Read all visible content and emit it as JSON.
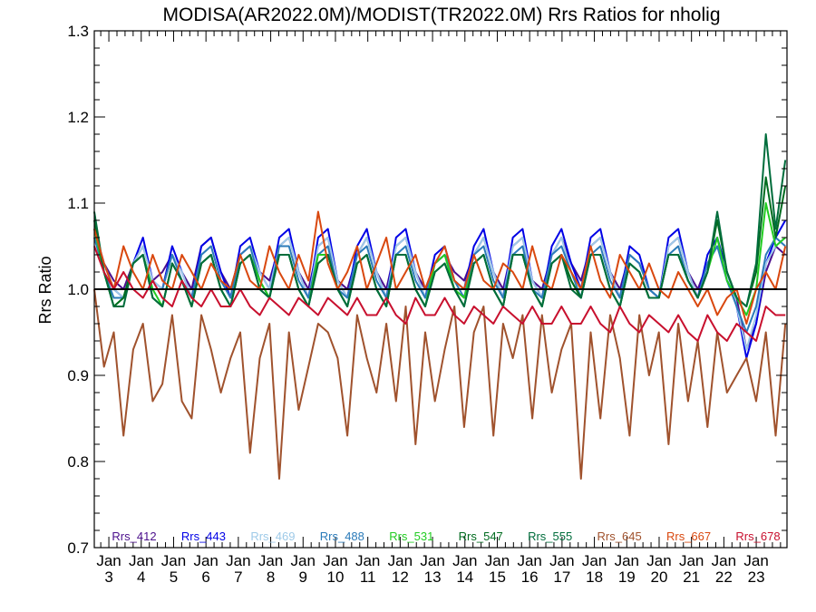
{
  "chart_data": {
    "type": "line",
    "title": "MODISA(AR2022.0M)/MODIST(TR2022.0M)  Rrs Ratios for nholig",
    "ylabel": "Rrs Ratio",
    "xlabel": "",
    "ylim": [
      0.7,
      1.3
    ],
    "yticks": [
      "0.7",
      "0.8",
      "0.9",
      "1.0",
      "1.1",
      "1.2",
      "1.3"
    ],
    "xlim": [
      2002.55,
      2023.95
    ],
    "xticks": [
      {
        "value": 2003,
        "label": "Jan",
        "sub": "3"
      },
      {
        "value": 2004,
        "label": "Jan",
        "sub": "4"
      },
      {
        "value": 2005,
        "label": "Jan",
        "sub": "5"
      },
      {
        "value": 2006,
        "label": "Jan",
        "sub": "6"
      },
      {
        "value": 2007,
        "label": "Jan",
        "sub": "7"
      },
      {
        "value": 2008,
        "label": "Jan",
        "sub": "8"
      },
      {
        "value": 2009,
        "label": "Jan",
        "sub": "9"
      },
      {
        "value": 2010,
        "label": "Jan",
        "sub": "10"
      },
      {
        "value": 2011,
        "label": "Jan",
        "sub": "11"
      },
      {
        "value": 2012,
        "label": "Jan",
        "sub": "12"
      },
      {
        "value": 2013,
        "label": "Jan",
        "sub": "13"
      },
      {
        "value": 2014,
        "label": "Jan",
        "sub": "14"
      },
      {
        "value": 2015,
        "label": "Jan",
        "sub": "15"
      },
      {
        "value": 2016,
        "label": "Jan",
        "sub": "16"
      },
      {
        "value": 2017,
        "label": "Jan",
        "sub": "17"
      },
      {
        "value": 2018,
        "label": "Jan",
        "sub": "18"
      },
      {
        "value": 2019,
        "label": "Jan",
        "sub": "19"
      },
      {
        "value": 2020,
        "label": "Jan",
        "sub": "20"
      },
      {
        "value": 2021,
        "label": "Jan",
        "sub": "21"
      },
      {
        "value": 2022,
        "label": "Jan",
        "sub": "22"
      },
      {
        "value": 2023,
        "label": "Jan",
        "sub": "23"
      }
    ],
    "reference_line": 1.0,
    "grid": false,
    "legend_position": "bottom",
    "series": [
      {
        "name": "Rrs_412",
        "color": "#4b0f8c",
        "values": [
          1.06,
          1.03,
          1.01,
          1.0,
          1.03,
          1.05,
          1.01,
          1.02,
          1.04,
          1.02,
          1.0,
          1.05,
          1.06,
          1.02,
          1.0,
          1.04,
          1.05,
          1.02,
          1.01,
          1.05,
          1.06,
          1.02,
          1.0,
          1.05,
          1.06,
          1.01,
          1.0,
          1.04,
          1.06,
          1.02,
          1.0,
          1.05,
          1.06,
          1.02,
          1.0,
          1.03,
          1.04,
          1.02,
          1.01,
          1.04,
          1.06,
          1.02,
          1.0,
          1.05,
          1.06,
          1.01,
          1.0,
          1.04,
          1.06,
          1.03,
          1.01,
          1.05,
          1.06,
          1.02,
          1.0,
          1.04,
          1.03,
          1.0,
          0.99,
          1.05,
          1.06,
          1.02,
          1.0,
          1.03,
          1.05,
          1.02,
          0.99,
          0.93,
          0.96,
          1.02,
          1.05,
          1.04
        ]
      },
      {
        "name": "Rrs_443",
        "color": "#0000e6",
        "values": [
          1.07,
          1.03,
          1.0,
          0.99,
          1.03,
          1.06,
          1.01,
          1.0,
          1.05,
          1.02,
          0.99,
          1.05,
          1.06,
          1.02,
          0.99,
          1.05,
          1.06,
          1.02,
          1.0,
          1.06,
          1.07,
          1.02,
          0.99,
          1.06,
          1.07,
          1.01,
          0.99,
          1.05,
          1.07,
          1.02,
          0.99,
          1.06,
          1.07,
          1.02,
          0.99,
          1.04,
          1.05,
          1.01,
          1.0,
          1.05,
          1.07,
          1.02,
          0.99,
          1.06,
          1.07,
          1.01,
          0.99,
          1.05,
          1.07,
          1.03,
          1.0,
          1.06,
          1.07,
          1.02,
          0.99,
          1.05,
          1.04,
          1.0,
          0.99,
          1.06,
          1.07,
          1.02,
          0.99,
          1.04,
          1.06,
          1.02,
          0.98,
          0.92,
          0.96,
          1.03,
          1.06,
          1.08
        ]
      },
      {
        "name": "Rrs_469",
        "color": "#9ecae8",
        "values": [
          1.06,
          1.03,
          1.0,
          0.99,
          1.03,
          1.05,
          1.01,
          1.0,
          1.04,
          1.02,
          0.99,
          1.04,
          1.05,
          1.01,
          0.99,
          1.04,
          1.05,
          1.02,
          1.0,
          1.05,
          1.06,
          1.02,
          0.99,
          1.05,
          1.06,
          1.01,
          0.99,
          1.04,
          1.06,
          1.02,
          0.99,
          1.05,
          1.06,
          1.02,
          0.99,
          1.03,
          1.04,
          1.01,
          1.0,
          1.04,
          1.06,
          1.02,
          0.99,
          1.05,
          1.06,
          1.01,
          0.99,
          1.04,
          1.06,
          1.02,
          1.0,
          1.05,
          1.06,
          1.02,
          0.99,
          1.04,
          1.03,
          1.0,
          0.99,
          1.05,
          1.06,
          1.02,
          0.99,
          1.03,
          1.05,
          1.02,
          0.98,
          0.93,
          0.97,
          1.03,
          1.05,
          1.06
        ]
      },
      {
        "name": "Rrs_488",
        "color": "#2b7bb9",
        "values": [
          1.06,
          1.02,
          0.99,
          0.99,
          1.03,
          1.04,
          1.0,
          1.0,
          1.04,
          1.01,
          0.99,
          1.04,
          1.05,
          1.01,
          0.99,
          1.04,
          1.05,
          1.01,
          0.99,
          1.05,
          1.05,
          1.01,
          0.99,
          1.04,
          1.05,
          1.0,
          0.99,
          1.04,
          1.05,
          1.01,
          0.99,
          1.04,
          1.05,
          1.01,
          0.99,
          1.03,
          1.04,
          1.01,
          0.99,
          1.04,
          1.05,
          1.01,
          0.99,
          1.04,
          1.05,
          1.0,
          0.99,
          1.04,
          1.05,
          1.02,
          0.99,
          1.04,
          1.05,
          1.01,
          0.99,
          1.04,
          1.03,
          1.0,
          0.99,
          1.04,
          1.05,
          1.01,
          0.99,
          1.03,
          1.05,
          1.01,
          0.98,
          0.95,
          0.98,
          1.04,
          1.06,
          1.05
        ]
      },
      {
        "name": "Rrs_531",
        "color": "#22cc22",
        "values": [
          1.07,
          1.02,
          0.98,
          0.99,
          1.03,
          1.04,
          1.0,
          0.98,
          1.03,
          1.01,
          0.98,
          1.03,
          1.04,
          1.0,
          0.98,
          1.03,
          1.04,
          1.01,
          0.99,
          1.04,
          1.04,
          1.0,
          0.98,
          1.04,
          1.04,
          1.0,
          0.98,
          1.03,
          1.04,
          1.0,
          0.98,
          1.04,
          1.04,
          1.0,
          0.98,
          1.03,
          1.04,
          1.0,
          0.99,
          1.03,
          1.04,
          1.0,
          0.98,
          1.04,
          1.04,
          1.0,
          0.98,
          1.03,
          1.04,
          1.01,
          0.99,
          1.04,
          1.04,
          1.0,
          0.98,
          1.03,
          1.02,
          0.99,
          0.99,
          1.04,
          1.04,
          1.01,
          0.99,
          1.02,
          1.06,
          1.01,
          0.99,
          0.97,
          1.0,
          1.1,
          1.05,
          1.06
        ]
      },
      {
        "name": "Rrs_547",
        "color": "#006b1f",
        "values": [
          1.08,
          1.02,
          0.98,
          0.99,
          1.03,
          1.04,
          0.99,
          0.98,
          1.03,
          1.01,
          0.98,
          1.03,
          1.04,
          1.0,
          0.98,
          1.03,
          1.04,
          1.0,
          0.99,
          1.04,
          1.04,
          1.0,
          0.98,
          1.03,
          1.04,
          1.0,
          0.98,
          1.03,
          1.04,
          1.0,
          0.98,
          1.04,
          1.04,
          1.0,
          0.98,
          1.02,
          1.03,
          1.0,
          0.98,
          1.03,
          1.04,
          1.0,
          0.98,
          1.04,
          1.04,
          1.0,
          0.98,
          1.03,
          1.04,
          1.01,
          0.99,
          1.04,
          1.04,
          1.0,
          0.98,
          1.03,
          1.02,
          0.99,
          0.99,
          1.04,
          1.04,
          1.01,
          0.99,
          1.02,
          1.08,
          1.02,
          0.99,
          0.98,
          1.02,
          1.13,
          1.06,
          1.12
        ]
      },
      {
        "name": "Rrs_555",
        "color": "#006d3c",
        "values": [
          1.09,
          1.02,
          0.98,
          0.98,
          1.03,
          1.04,
          0.99,
          0.98,
          1.03,
          1.01,
          0.98,
          1.03,
          1.04,
          1.0,
          0.98,
          1.03,
          1.04,
          1.0,
          0.99,
          1.04,
          1.04,
          1.0,
          0.98,
          1.03,
          1.04,
          1.0,
          0.98,
          1.03,
          1.04,
          1.0,
          0.98,
          1.04,
          1.04,
          1.0,
          0.98,
          1.02,
          1.03,
          1.0,
          0.98,
          1.03,
          1.04,
          1.0,
          0.98,
          1.04,
          1.04,
          1.0,
          0.98,
          1.03,
          1.04,
          1.0,
          0.99,
          1.04,
          1.04,
          1.0,
          0.98,
          1.03,
          1.02,
          0.99,
          0.99,
          1.04,
          1.04,
          1.01,
          0.99,
          1.02,
          1.09,
          1.02,
          0.99,
          0.98,
          1.03,
          1.18,
          1.07,
          1.15
        ]
      },
      {
        "name": "Rrs_645",
        "color": "#a0522d",
        "values": [
          1.0,
          0.91,
          0.95,
          0.83,
          0.93,
          0.96,
          0.87,
          0.89,
          0.97,
          0.87,
          0.85,
          0.97,
          0.93,
          0.88,
          0.92,
          0.95,
          0.81,
          0.92,
          0.96,
          0.78,
          0.95,
          0.86,
          0.91,
          0.96,
          0.95,
          0.92,
          0.83,
          0.97,
          0.92,
          0.88,
          0.96,
          0.87,
          0.98,
          0.82,
          0.95,
          0.87,
          0.93,
          0.98,
          0.84,
          0.95,
          0.98,
          0.83,
          0.96,
          0.92,
          0.97,
          0.85,
          0.97,
          0.88,
          0.93,
          0.96,
          0.78,
          0.95,
          0.85,
          0.97,
          0.92,
          0.83,
          0.97,
          0.9,
          0.95,
          0.82,
          0.96,
          0.87,
          0.94,
          0.84,
          0.95,
          0.88,
          0.9,
          0.92,
          0.87,
          0.95,
          0.83,
          0.96
        ]
      },
      {
        "name": "Rrs_667",
        "color": "#d9480f",
        "values": [
          1.07,
          1.03,
          1.0,
          1.05,
          1.02,
          1.0,
          1.04,
          1.01,
          1.0,
          1.04,
          1.02,
          1.0,
          1.03,
          1.01,
          1.0,
          1.04,
          1.01,
          1.0,
          1.05,
          1.02,
          1.0,
          1.04,
          1.01,
          1.09,
          1.03,
          1.0,
          1.02,
          1.05,
          1.0,
          1.03,
          1.06,
          1.0,
          1.02,
          1.04,
          1.0,
          1.03,
          1.05,
          1.01,
          1.0,
          1.04,
          1.01,
          1.0,
          1.03,
          1.02,
          1.0,
          1.05,
          1.01,
          1.0,
          1.04,
          1.02,
          1.0,
          1.05,
          1.01,
          0.99,
          1.04,
          1.02,
          1.0,
          1.03,
          1.0,
          0.99,
          1.02,
          1.0,
          0.98,
          1.0,
          0.97,
          0.99,
          1.0,
          0.96,
          1.0,
          1.02,
          1.0,
          1.05
        ]
      },
      {
        "name": "Rrs_678",
        "color": "#c8102e",
        "values": [
          1.05,
          1.02,
          1.0,
          1.02,
          1.0,
          0.99,
          1.01,
          0.99,
          0.98,
          1.01,
          0.99,
          0.98,
          1.0,
          0.98,
          0.98,
          1.0,
          0.98,
          0.97,
          0.99,
          0.98,
          0.97,
          0.99,
          0.98,
          0.97,
          0.99,
          0.98,
          0.97,
          0.99,
          0.97,
          0.97,
          0.99,
          0.97,
          0.96,
          0.99,
          0.97,
          0.97,
          0.99,
          0.97,
          0.96,
          0.98,
          0.97,
          0.96,
          0.98,
          0.97,
          0.96,
          0.98,
          0.96,
          0.96,
          0.98,
          0.96,
          0.96,
          0.98,
          0.96,
          0.95,
          0.98,
          0.96,
          0.95,
          0.97,
          0.96,
          0.95,
          0.97,
          0.95,
          0.94,
          0.97,
          0.95,
          0.94,
          0.96,
          0.95,
          0.94,
          0.98,
          0.97,
          0.97
        ]
      }
    ]
  }
}
